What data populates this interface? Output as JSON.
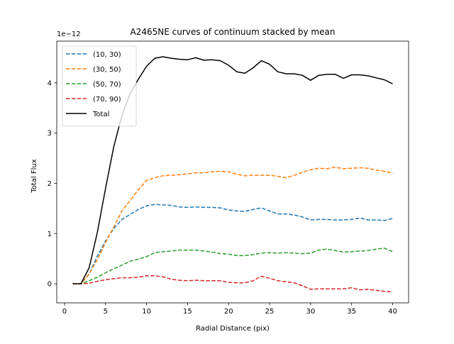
{
  "chart_data": {
    "type": "line",
    "title": "A2465NE curves of continuum stacked by mean",
    "xlabel": "Radial Distance (pix)",
    "ylabel": "Total Flux",
    "y_scale_label": "1e−12",
    "xlim": [
      -0.95,
      41.95
    ],
    "ylim": [
      -0.38,
      4.83
    ],
    "x_ticks": [
      0,
      5,
      10,
      15,
      20,
      25,
      30,
      35,
      40
    ],
    "y_ticks": [
      0,
      1,
      2,
      3,
      4
    ],
    "grid": false,
    "legend_position": "top-left",
    "x": [
      1,
      2,
      3,
      4,
      5,
      6,
      7,
      8,
      9,
      10,
      11,
      12,
      13,
      14,
      15,
      16,
      17,
      18,
      19,
      20,
      21,
      22,
      23,
      24,
      25,
      26,
      27,
      28,
      29,
      30,
      31,
      32,
      33,
      34,
      35,
      36,
      37,
      38,
      39,
      40
    ],
    "series": [
      {
        "name": "(10, 30)",
        "color": "#1f77b4",
        "dash": true,
        "values": [
          0,
          0,
          0.19,
          0.55,
          0.85,
          1.1,
          1.28,
          1.38,
          1.48,
          1.55,
          1.58,
          1.57,
          1.56,
          1.53,
          1.52,
          1.53,
          1.52,
          1.52,
          1.51,
          1.47,
          1.45,
          1.44,
          1.48,
          1.51,
          1.45,
          1.39,
          1.39,
          1.37,
          1.33,
          1.27,
          1.28,
          1.28,
          1.27,
          1.27,
          1.28,
          1.31,
          1.27,
          1.27,
          1.26,
          1.3
        ]
      },
      {
        "name": "(30, 50)",
        "color": "#ff7f0e",
        "dash": true,
        "values": [
          0,
          0,
          0.2,
          0.48,
          0.82,
          1.13,
          1.45,
          1.66,
          1.87,
          2.06,
          2.11,
          2.15,
          2.16,
          2.17,
          2.19,
          2.21,
          2.21,
          2.23,
          2.24,
          2.23,
          2.18,
          2.15,
          2.16,
          2.16,
          2.16,
          2.14,
          2.11,
          2.16,
          2.22,
          2.27,
          2.3,
          2.29,
          2.32,
          2.29,
          2.3,
          2.31,
          2.3,
          2.26,
          2.24,
          2.2
        ]
      },
      {
        "name": "(50, 70)",
        "color": "#2ca02c",
        "dash": true,
        "values": [
          0,
          0,
          0.06,
          0.13,
          0.22,
          0.3,
          0.37,
          0.45,
          0.49,
          0.54,
          0.62,
          0.64,
          0.65,
          0.67,
          0.67,
          0.67,
          0.65,
          0.63,
          0.6,
          0.59,
          0.56,
          0.56,
          0.58,
          0.61,
          0.62,
          0.61,
          0.62,
          0.61,
          0.6,
          0.61,
          0.67,
          0.69,
          0.66,
          0.63,
          0.64,
          0.65,
          0.66,
          0.69,
          0.71,
          0.64
        ]
      },
      {
        "name": "(70, 90)",
        "color": "#d62728",
        "dash": true,
        "values": [
          0,
          0,
          0.01,
          0.05,
          0.08,
          0.1,
          0.12,
          0.12,
          0.13,
          0.16,
          0.16,
          0.14,
          0.09,
          0.07,
          0.06,
          0.07,
          0.06,
          0.06,
          0.06,
          0.03,
          0.02,
          0.02,
          0.06,
          0.15,
          0.11,
          0.06,
          0.04,
          0.02,
          -0.04,
          -0.11,
          -0.1,
          -0.1,
          -0.1,
          -0.1,
          -0.08,
          -0.12,
          -0.11,
          -0.13,
          -0.15,
          -0.16
        ]
      },
      {
        "name": "Total",
        "color": "#000000",
        "dash": false,
        "values": [
          0,
          0,
          0.32,
          1.02,
          1.9,
          2.73,
          3.35,
          3.79,
          4.07,
          4.33,
          4.49,
          4.52,
          4.49,
          4.47,
          4.46,
          4.5,
          4.45,
          4.46,
          4.44,
          4.35,
          4.22,
          4.19,
          4.3,
          4.44,
          4.37,
          4.22,
          4.18,
          4.18,
          4.15,
          4.05,
          4.15,
          4.17,
          4.17,
          4.09,
          4.16,
          4.16,
          4.14,
          4.1,
          4.06,
          3.98
        ]
      }
    ]
  }
}
